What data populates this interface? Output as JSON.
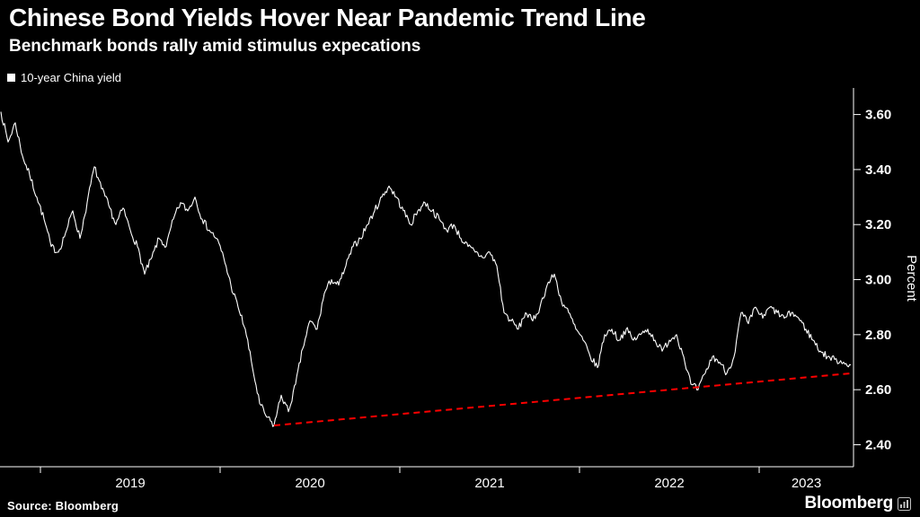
{
  "header": {
    "title": "Chinese Bond Yields Hover Near Pandemic Trend Line",
    "subtitle": "Benchmark bonds rally amid stimulus expecations"
  },
  "legend": {
    "label": "10-year China yield",
    "marker_color": "#ffffff"
  },
  "footer": {
    "source": "Source: Bloomberg",
    "logo": "Bloomberg"
  },
  "colors": {
    "background": "#000000",
    "text": "#ffffff",
    "axis": "#ffffff",
    "series_line": "#ffffff",
    "trend_line": "#ff0000"
  },
  "chart_data": {
    "type": "line",
    "title": "10-year China yield",
    "xlabel": "",
    "ylabel": "Percent",
    "grid": false,
    "legend_position": "top-left",
    "x_range": [
      2018.775,
      2023.525
    ],
    "y_range": [
      2.32,
      3.69
    ],
    "y_ticks": [
      2.4,
      2.6,
      2.8,
      3.0,
      3.2,
      3.4,
      3.6
    ],
    "x_tick_years": [
      2019,
      2020,
      2021,
      2022,
      2023
    ],
    "unit": "percent",
    "noise_amplitude": 0.013,
    "series": [
      {
        "name": "10-year China yield",
        "color": "#ffffff",
        "points": [
          [
            2018.78,
            3.61
          ],
          [
            2018.82,
            3.5
          ],
          [
            2018.86,
            3.57
          ],
          [
            2018.9,
            3.45
          ],
          [
            2018.94,
            3.38
          ],
          [
            2018.98,
            3.3
          ],
          [
            2019.02,
            3.22
          ],
          [
            2019.06,
            3.12
          ],
          [
            2019.1,
            3.1
          ],
          [
            2019.14,
            3.17
          ],
          [
            2019.18,
            3.25
          ],
          [
            2019.22,
            3.15
          ],
          [
            2019.26,
            3.28
          ],
          [
            2019.3,
            3.41
          ],
          [
            2019.34,
            3.33
          ],
          [
            2019.38,
            3.27
          ],
          [
            2019.42,
            3.2
          ],
          [
            2019.46,
            3.26
          ],
          [
            2019.5,
            3.18
          ],
          [
            2019.54,
            3.12
          ],
          [
            2019.58,
            3.02
          ],
          [
            2019.62,
            3.08
          ],
          [
            2019.66,
            3.15
          ],
          [
            2019.7,
            3.12
          ],
          [
            2019.74,
            3.22
          ],
          [
            2019.78,
            3.28
          ],
          [
            2019.82,
            3.25
          ],
          [
            2019.86,
            3.3
          ],
          [
            2019.9,
            3.22
          ],
          [
            2019.94,
            3.18
          ],
          [
            2019.98,
            3.15
          ],
          [
            2020.02,
            3.08
          ],
          [
            2020.06,
            2.98
          ],
          [
            2020.1,
            2.9
          ],
          [
            2020.14,
            2.82
          ],
          [
            2020.18,
            2.68
          ],
          [
            2020.22,
            2.55
          ],
          [
            2020.26,
            2.5
          ],
          [
            2020.3,
            2.47
          ],
          [
            2020.34,
            2.58
          ],
          [
            2020.38,
            2.52
          ],
          [
            2020.42,
            2.62
          ],
          [
            2020.46,
            2.75
          ],
          [
            2020.5,
            2.85
          ],
          [
            2020.54,
            2.82
          ],
          [
            2020.58,
            2.95
          ],
          [
            2020.62,
            3.0
          ],
          [
            2020.66,
            2.98
          ],
          [
            2020.7,
            3.05
          ],
          [
            2020.74,
            3.12
          ],
          [
            2020.78,
            3.15
          ],
          [
            2020.82,
            3.2
          ],
          [
            2020.86,
            3.25
          ],
          [
            2020.9,
            3.3
          ],
          [
            2020.94,
            3.34
          ],
          [
            2020.98,
            3.3
          ],
          [
            2021.02,
            3.25
          ],
          [
            2021.06,
            3.2
          ],
          [
            2021.1,
            3.25
          ],
          [
            2021.14,
            3.28
          ],
          [
            2021.18,
            3.25
          ],
          [
            2021.22,
            3.22
          ],
          [
            2021.26,
            3.18
          ],
          [
            2021.3,
            3.2
          ],
          [
            2021.34,
            3.15
          ],
          [
            2021.38,
            3.12
          ],
          [
            2021.42,
            3.1
          ],
          [
            2021.46,
            3.08
          ],
          [
            2021.5,
            3.1
          ],
          [
            2021.54,
            3.05
          ],
          [
            2021.58,
            2.88
          ],
          [
            2021.62,
            2.85
          ],
          [
            2021.66,
            2.82
          ],
          [
            2021.7,
            2.88
          ],
          [
            2021.74,
            2.85
          ],
          [
            2021.78,
            2.9
          ],
          [
            2021.82,
            2.98
          ],
          [
            2021.86,
            3.02
          ],
          [
            2021.9,
            2.92
          ],
          [
            2021.94,
            2.88
          ],
          [
            2021.98,
            2.82
          ],
          [
            2022.02,
            2.78
          ],
          [
            2022.06,
            2.72
          ],
          [
            2022.1,
            2.68
          ],
          [
            2022.14,
            2.8
          ],
          [
            2022.18,
            2.82
          ],
          [
            2022.22,
            2.78
          ],
          [
            2022.26,
            2.82
          ],
          [
            2022.3,
            2.78
          ],
          [
            2022.34,
            2.8
          ],
          [
            2022.38,
            2.82
          ],
          [
            2022.42,
            2.78
          ],
          [
            2022.46,
            2.74
          ],
          [
            2022.5,
            2.78
          ],
          [
            2022.54,
            2.8
          ],
          [
            2022.58,
            2.72
          ],
          [
            2022.62,
            2.62
          ],
          [
            2022.66,
            2.6
          ],
          [
            2022.7,
            2.66
          ],
          [
            2022.74,
            2.72
          ],
          [
            2022.78,
            2.7
          ],
          [
            2022.82,
            2.66
          ],
          [
            2022.86,
            2.72
          ],
          [
            2022.9,
            2.88
          ],
          [
            2022.94,
            2.84
          ],
          [
            2022.98,
            2.9
          ],
          [
            2023.02,
            2.86
          ],
          [
            2023.06,
            2.9
          ],
          [
            2023.1,
            2.88
          ],
          [
            2023.14,
            2.86
          ],
          [
            2023.18,
            2.88
          ],
          [
            2023.22,
            2.86
          ],
          [
            2023.26,
            2.82
          ],
          [
            2023.3,
            2.78
          ],
          [
            2023.34,
            2.74
          ],
          [
            2023.38,
            2.72
          ],
          [
            2023.42,
            2.71
          ],
          [
            2023.47,
            2.7
          ],
          [
            2023.51,
            2.69
          ]
        ]
      }
    ],
    "trend_line": {
      "name": "pandemic trend line",
      "color": "#ff0000",
      "style": "dashed",
      "points": [
        [
          2020.3,
          2.47
        ],
        [
          2023.52,
          2.66
        ]
      ]
    }
  }
}
